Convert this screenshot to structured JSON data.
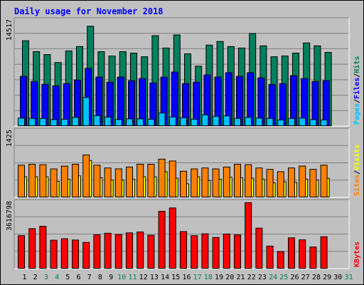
{
  "chart_data": {
    "type": "bar",
    "title": "Daily usage for November 2018",
    "days": [
      "1",
      "2",
      "3",
      "4",
      "5",
      "6",
      "7",
      "8",
      "9",
      "10",
      "11",
      "12",
      "13",
      "14",
      "15",
      "16",
      "17",
      "18",
      "19",
      "20",
      "21",
      "22",
      "23",
      "24",
      "25",
      "26",
      "27",
      "28",
      "29",
      "30",
      "31"
    ],
    "weekend_days": [
      "3",
      "4",
      "10",
      "11",
      "17",
      "18",
      "24",
      "25",
      "31"
    ],
    "panels": [
      {
        "id": "hits-files-pages",
        "max_label": "14517",
        "ymax": 14517,
        "legend": [
          "Pages",
          "/",
          "Files",
          "/",
          "Hits"
        ],
        "series": [
          {
            "name": "Hits",
            "color": "#00805c",
            "values": [
              11800,
              10300,
              9900,
              8800,
              10400,
              11000,
              13800,
              10300,
              9700,
              10300,
              10100,
              9600,
              12500,
              10800,
              12600,
              10000,
              8300,
              11200,
              11700,
              11000,
              10800,
              12800,
              11100,
              9600,
              9700,
              10100,
              11500,
              11100,
              10200
            ]
          },
          {
            "name": "Files",
            "color": "#0000ff",
            "values": [
              6900,
              6200,
              5800,
              5600,
              5900,
              6400,
              8000,
              6800,
              6100,
              6800,
              6300,
              6600,
              6000,
              6800,
              7500,
              5900,
              6100,
              7100,
              6800,
              7400,
              6900,
              7400,
              6700,
              5800,
              5900,
              7000,
              6600,
              6200,
              6300
            ]
          },
          {
            "name": "Pages",
            "color": "#00c0ff",
            "values": [
              1150,
              1100,
              1100,
              950,
              1000,
              1250,
              4000,
              1500,
              1300,
              950,
              1050,
              1050,
              1000,
              1850,
              1300,
              1200,
              1000,
              1600,
              1400,
              1450,
              1100,
              1250,
              1150,
              1100,
              900,
              1100,
              1150,
              950,
              900
            ]
          }
        ]
      },
      {
        "id": "sites-visits",
        "max_label": "1425",
        "ymax": 1425,
        "legend": [
          "Sites",
          "/",
          "Visits"
        ],
        "series": [
          {
            "name": "Visits",
            "color": "#ffff00",
            "values": [
              450,
              450,
              450,
              350,
              400,
              470,
              800,
              430,
              380,
              380,
              400,
              450,
              450,
              560,
              420,
              300,
              450,
              370,
              400,
              440,
              430,
              420,
              400,
              320,
              340,
              330,
              400,
              380,
              420
            ]
          },
          {
            "name": "Sites",
            "color": "#ff8000",
            "values": [
              700,
              720,
              710,
              620,
              680,
              720,
              920,
              700,
              640,
              620,
              660,
              720,
              720,
              830,
              790,
              570,
              620,
              640,
              620,
              660,
              720,
              710,
              640,
              610,
              560,
              640,
              680,
              610,
              700
            ]
          }
        ]
      },
      {
        "id": "kbytes",
        "max_label": "3616798",
        "ymax": 3616798,
        "legend": [
          "KBytes"
        ],
        "series": [
          {
            "name": "KBytes",
            "color": "#ff0000",
            "values": [
              1820000,
              2200000,
              2330000,
              1570000,
              1650000,
              1580000,
              1450000,
              1860000,
              1950000,
              1880000,
              1970000,
              2020000,
              1840000,
              3150000,
              3330000,
              2040000,
              1820000,
              1920000,
              1720000,
              1910000,
              1860000,
              3616798,
              2230000,
              1250000,
              950000,
              1700000,
              1590000,
              1200000,
              1760000
            ]
          }
        ]
      }
    ]
  }
}
